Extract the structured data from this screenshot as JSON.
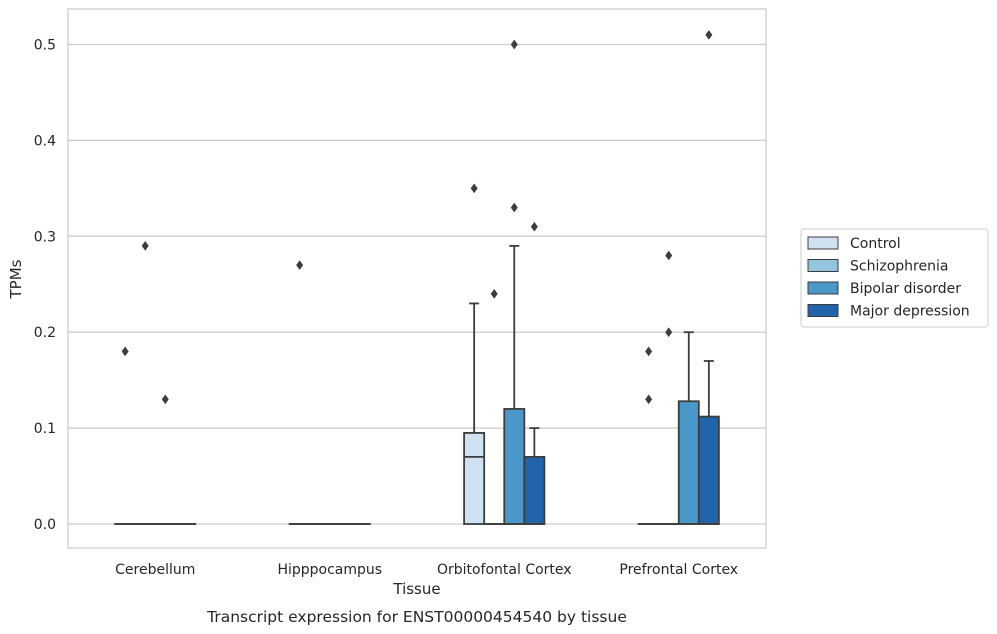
{
  "chart_data": {
    "type": "box",
    "title": "",
    "caption": "Transcript expression for ENST00000454540 by tissue",
    "xlabel": "Tissue",
    "ylabel": "TPMs",
    "ylim": [
      -0.025,
      0.537
    ],
    "yticks": [
      0.0,
      0.1,
      0.2,
      0.3,
      0.4,
      0.5
    ],
    "ytick_labels": [
      "0.0",
      "0.1",
      "0.2",
      "0.3",
      "0.4",
      "0.5"
    ],
    "grid": "horizontal",
    "legend_position": "right",
    "categories": [
      "Cerebellum",
      "Hipppocampus",
      "Orbitofontal Cortex",
      "Prefrontal Cortex"
    ],
    "series": [
      {
        "name": "Control",
        "color": "#d0e1f2",
        "boxes": [
          {
            "q1": 0,
            "median": 0,
            "q3": 0,
            "whislo": 0,
            "whishi": 0,
            "fliers": [
              0.18
            ]
          },
          {
            "q1": 0,
            "median": 0,
            "q3": 0,
            "whislo": 0,
            "whishi": 0,
            "fliers": [
              0.27
            ]
          },
          {
            "q1": 0,
            "median": 0.07,
            "q3": 0.095,
            "whislo": 0,
            "whishi": 0.23,
            "fliers": [
              0.35
            ]
          },
          {
            "q1": 0,
            "median": 0,
            "q3": 0,
            "whislo": 0,
            "whishi": 0,
            "fliers": [
              0.18,
              0.13
            ]
          }
        ]
      },
      {
        "name": "Schizophrenia",
        "color": "#94c4df",
        "boxes": [
          {
            "q1": 0,
            "median": 0,
            "q3": 0,
            "whislo": 0,
            "whishi": 0,
            "fliers": [
              0.29
            ]
          },
          {
            "q1": 0,
            "median": 0,
            "q3": 0,
            "whislo": 0,
            "whishi": 0,
            "fliers": []
          },
          {
            "q1": 0,
            "median": 0,
            "q3": 0,
            "whislo": 0,
            "whishi": 0,
            "fliers": [
              0.24
            ]
          },
          {
            "q1": 0,
            "median": 0,
            "q3": 0,
            "whislo": 0,
            "whishi": 0,
            "fliers": [
              0.28,
              0.2
            ]
          }
        ]
      },
      {
        "name": "Bipolar disorder",
        "color": "#4a98c9",
        "boxes": [
          {
            "q1": 0,
            "median": 0,
            "q3": 0,
            "whislo": 0,
            "whishi": 0,
            "fliers": [
              0.13
            ]
          },
          {
            "q1": 0,
            "median": 0,
            "q3": 0,
            "whislo": 0,
            "whishi": 0,
            "fliers": []
          },
          {
            "q1": 0,
            "median": 0,
            "q3": 0.12,
            "whislo": 0,
            "whishi": 0.29,
            "fliers": [
              0.5,
              0.33
            ]
          },
          {
            "q1": 0,
            "median": 0,
            "q3": 0.128,
            "whislo": 0,
            "whishi": 0.2,
            "fliers": []
          }
        ]
      },
      {
        "name": "Major depression",
        "color": "#2164ab",
        "boxes": [
          {
            "q1": 0,
            "median": 0,
            "q3": 0,
            "whislo": 0,
            "whishi": 0,
            "fliers": []
          },
          {
            "q1": 0,
            "median": 0,
            "q3": 0,
            "whislo": 0,
            "whishi": 0,
            "fliers": []
          },
          {
            "q1": 0,
            "median": 0,
            "q3": 0.07,
            "whislo": 0,
            "whishi": 0.1,
            "fliers": [
              0.31
            ]
          },
          {
            "q1": 0,
            "median": 0,
            "q3": 0.112,
            "whislo": 0,
            "whishi": 0.17,
            "fliers": [
              0.51
            ]
          }
        ]
      }
    ]
  }
}
